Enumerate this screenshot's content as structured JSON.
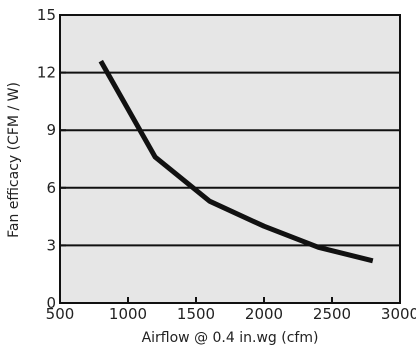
{
  "chart_data": {
    "type": "line",
    "title": "",
    "xlabel": "Airflow @ 0.4 in.wg (cfm)",
    "ylabel": "Fan efficacy (CFM / W)",
    "xlim": [
      500,
      3000
    ],
    "ylim": [
      0,
      15
    ],
    "x_ticks": [
      500,
      1000,
      1500,
      2000,
      2500,
      3000
    ],
    "y_ticks": [
      0,
      3,
      6,
      9,
      12,
      15
    ],
    "grid": "horizontal",
    "colors": {
      "plot_background": "#e6e6e6",
      "grid": "#111111",
      "series": "#111111"
    },
    "series": [
      {
        "x": [
          800,
          1200,
          1600,
          2000,
          2400,
          2800
        ],
        "values": [
          12.6,
          7.6,
          5.3,
          4.0,
          2.9,
          2.2
        ]
      }
    ]
  }
}
